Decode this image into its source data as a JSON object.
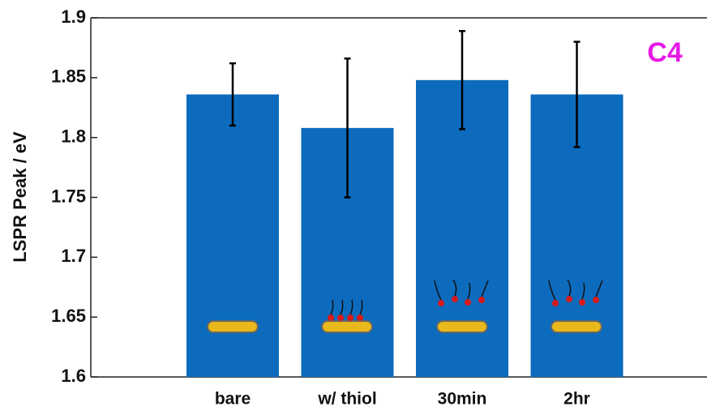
{
  "chart_data": {
    "type": "bar",
    "y_label": "LSPR Peak / eV",
    "annotation": "C4",
    "annotation_color": "#e619e6",
    "categories": [
      "bare",
      "w/ thiol",
      "30min",
      "2hr"
    ],
    "values": [
      1.836,
      1.808,
      1.848,
      1.836
    ],
    "errors": [
      0.026,
      0.058,
      0.041,
      0.044
    ],
    "color": "#0c6bbd",
    "ylim": [
      1.6,
      1.9
    ],
    "yticks": [
      1.6,
      1.65,
      1.7,
      1.75,
      1.8,
      1.85,
      1.9
    ]
  }
}
